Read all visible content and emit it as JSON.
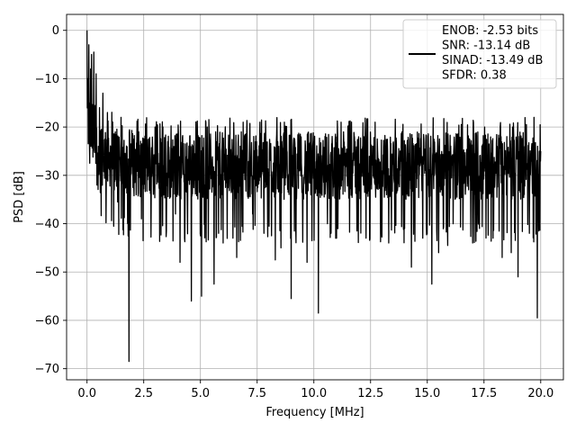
{
  "chart_data": {
    "type": "line",
    "xlabel": "Frequency [MHz]",
    "ylabel": "PSD [dB]",
    "xlim": [
      -0.9,
      21.0
    ],
    "ylim": [
      -72.3,
      3.3
    ],
    "grid": true,
    "x_ticks": [
      0.0,
      2.5,
      5.0,
      7.5,
      10.0,
      12.5,
      15.0,
      17.5,
      20.0
    ],
    "x_tick_labels": [
      "0.0",
      "2.5",
      "5.0",
      "7.5",
      "10.0",
      "12.5",
      "15.0",
      "17.5",
      "20.0"
    ],
    "y_ticks": [
      0,
      -10,
      -20,
      -30,
      -40,
      -50,
      -60,
      -70
    ],
    "y_tick_labels": [
      "0",
      "−10",
      "−20",
      "−30",
      "−40",
      "−50",
      "−60",
      "−70"
    ],
    "legend_position": "top-right",
    "series": [
      {
        "name": "ENOB: -2.53 bits\nSNR: -13.14 dB\nSINAD: -13.49 dB\nSFDR: 0.38",
        "color": "#000000",
        "x_range": [
          0.0,
          20.0
        ],
        "noise_floor": {
          "mean": -28.0,
          "upper": -20.0,
          "lower": -40.0
        },
        "points": [
          [
            0.0,
            0.0
          ],
          [
            0.04,
            -10.0
          ],
          [
            0.08,
            -3.0
          ],
          [
            0.12,
            -27.5
          ],
          [
            0.16,
            -8.0
          ],
          [
            0.2,
            -5.0
          ],
          [
            0.25,
            -20.0
          ],
          [
            0.3,
            -4.5
          ],
          [
            0.35,
            -18.0
          ],
          [
            0.4,
            -9.0
          ],
          [
            0.5,
            -24.0
          ],
          [
            0.55,
            -16.0
          ],
          [
            0.65,
            -26.0
          ],
          [
            0.7,
            -13.0
          ],
          [
            0.8,
            -27.0
          ],
          [
            0.9,
            -17.0
          ],
          [
            1.0,
            -28.0
          ],
          [
            1.2,
            -33.0
          ],
          [
            1.35,
            -35.5
          ],
          [
            1.5,
            -18.0
          ],
          [
            1.85,
            -68.5
          ],
          [
            2.0,
            -22.0
          ],
          [
            2.4,
            -39.0
          ],
          [
            3.0,
            -20.0
          ],
          [
            3.5,
            -41.5
          ],
          [
            3.9,
            -38.0
          ],
          [
            4.1,
            -48.0
          ],
          [
            4.3,
            -43.0
          ],
          [
            4.6,
            -56.0
          ],
          [
            5.05,
            -55.0
          ],
          [
            5.3,
            -20.0
          ],
          [
            5.6,
            -52.5
          ],
          [
            5.8,
            -42.0
          ],
          [
            6.0,
            -44.0
          ],
          [
            6.6,
            -47.0
          ],
          [
            6.8,
            -21.0
          ],
          [
            7.3,
            -38.0
          ],
          [
            7.8,
            -42.0
          ],
          [
            8.3,
            -47.5
          ],
          [
            8.55,
            -45.0
          ],
          [
            8.7,
            -19.0
          ],
          [
            9.0,
            -55.5
          ],
          [
            9.2,
            -41.0
          ],
          [
            9.7,
            -48.0
          ],
          [
            10.2,
            -58.5
          ],
          [
            10.6,
            -40.0
          ],
          [
            11.0,
            -43.0
          ],
          [
            11.2,
            -19.0
          ],
          [
            11.9,
            -41.5
          ],
          [
            12.3,
            -43.0
          ],
          [
            12.7,
            -19.0
          ],
          [
            13.3,
            -44.0
          ],
          [
            14.0,
            -41.0
          ],
          [
            14.3,
            -49.0
          ],
          [
            14.8,
            -43.0
          ],
          [
            15.2,
            -52.5
          ],
          [
            15.5,
            -46.0
          ],
          [
            15.9,
            -44.5
          ],
          [
            16.5,
            -19.5
          ],
          [
            17.0,
            -44.0
          ],
          [
            17.3,
            -41.0
          ],
          [
            17.9,
            -43.0
          ],
          [
            18.3,
            -47.0
          ],
          [
            18.7,
            -46.0
          ],
          [
            19.0,
            -51.0
          ],
          [
            19.5,
            -42.0
          ],
          [
            19.85,
            -59.5
          ],
          [
            20.0,
            -25.0
          ]
        ]
      }
    ]
  }
}
